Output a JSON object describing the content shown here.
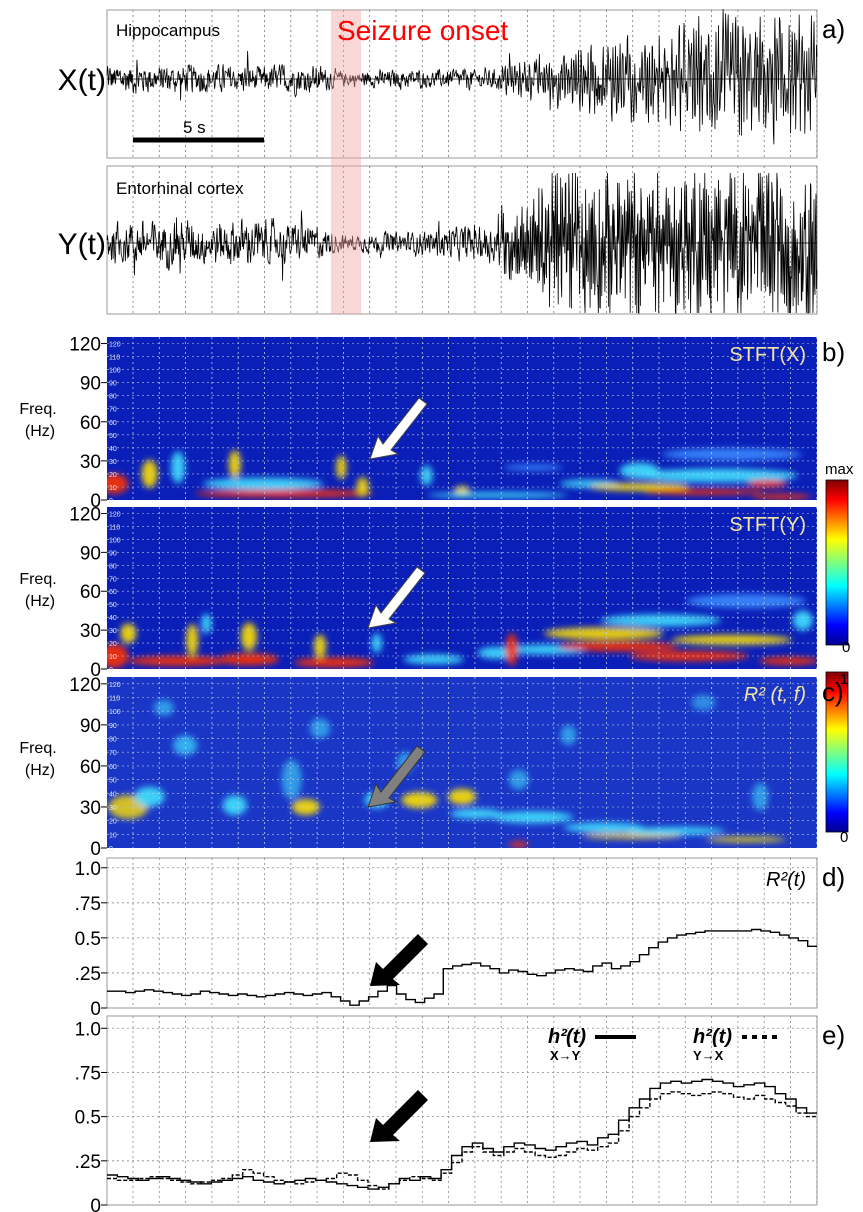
{
  "figure": {
    "panel_labels": [
      "a)",
      "b)",
      "c)",
      "d)",
      "e)"
    ],
    "seizure_onset_label": "Seizure onset",
    "seizure_band_color": "#f4a6a6",
    "scale_bar_label": "5 s"
  },
  "chart_data": [
    {
      "id": "a-x",
      "type": "line",
      "signal_label": "X(t)",
      "region_label": "Hippocampus",
      "series": [
        {
          "name": "",
          "trend": [
            0.18,
            0.18,
            0.17,
            0.19,
            0.18,
            0.17,
            0.16,
            0.2,
            0.18,
            0.1,
            0.1,
            0.12,
            0.12,
            0.13,
            0.14,
            0.15,
            0.18,
            0.22,
            0.28,
            0.34,
            0.38,
            0.42,
            0.46,
            0.5,
            0.55,
            0.55,
            0.55,
            0.55
          ]
        }
      ]
    },
    {
      "id": "a-y",
      "type": "line",
      "signal_label": "Y(t)",
      "region_label": "Entorhinal cortex",
      "series": [
        {
          "name": "",
          "trend": [
            0.25,
            0.28,
            0.3,
            0.3,
            0.27,
            0.3,
            0.28,
            0.25,
            0.22,
            0.1,
            0.12,
            0.14,
            0.16,
            0.2,
            0.22,
            0.3,
            0.36,
            0.65,
            0.72,
            0.68,
            0.66,
            0.66,
            0.68,
            0.7,
            0.72,
            0.72,
            0.74,
            0.75
          ]
        }
      ]
    },
    {
      "id": "b-x",
      "type": "heatmap",
      "title": "STFT(X)",
      "ylabel": "Freq.\n(Hz)",
      "y_ticks": [
        "0",
        "30",
        "60",
        "90",
        "120"
      ],
      "fine_ticks": [
        "0",
        "10",
        "20",
        "30",
        "40",
        "50",
        "60",
        "70",
        "80",
        "90",
        "100",
        "110",
        "120"
      ],
      "ylim": [
        0,
        125
      ],
      "colorbar": {
        "max_label": "max",
        "min_label": "0"
      }
    },
    {
      "id": "b-y",
      "type": "heatmap",
      "title": "STFT(Y)",
      "ylabel": "Freq.\n(Hz)",
      "y_ticks": [
        "0",
        "30",
        "60",
        "90",
        "120"
      ],
      "fine_ticks": [
        "0",
        "10",
        "20",
        "30",
        "40",
        "50",
        "60",
        "70",
        "80",
        "90",
        "100",
        "110",
        "120"
      ],
      "ylim": [
        0,
        125
      ]
    },
    {
      "id": "c",
      "type": "heatmap",
      "title": "R² (t, f)",
      "ylabel": "Freq.\n(Hz)",
      "y_ticks": [
        "0",
        "30",
        "60",
        "90",
        "120"
      ],
      "fine_ticks": [
        "0",
        "10",
        "20",
        "30",
        "40",
        "50",
        "60",
        "70",
        "80",
        "90",
        "100",
        "110",
        "120"
      ],
      "ylim": [
        0,
        125
      ],
      "colorbar": {
        "max_label": "1",
        "min_label": "0"
      }
    },
    {
      "id": "d",
      "type": "line",
      "title": "R²(t)",
      "y_ticks": [
        "0",
        ".25",
        "0.5",
        ".75",
        "1.0"
      ],
      "ylim": [
        0,
        1
      ],
      "series": [
        {
          "name": "",
          "style": "solid",
          "values": [
            0.12,
            0.12,
            0.11,
            0.12,
            0.13,
            0.12,
            0.11,
            0.1,
            0.09,
            0.1,
            0.12,
            0.11,
            0.1,
            0.09,
            0.1,
            0.09,
            0.08,
            0.09,
            0.1,
            0.11,
            0.1,
            0.09,
            0.1,
            0.11,
            0.08,
            0.05,
            0.02,
            0.05,
            0.08,
            0.12,
            0.16,
            0.1,
            0.06,
            0.04,
            0.07,
            0.1,
            0.28,
            0.3,
            0.31,
            0.32,
            0.3,
            0.28,
            0.25,
            0.27,
            0.26,
            0.24,
            0.23,
            0.25,
            0.27,
            0.28,
            0.27,
            0.26,
            0.3,
            0.32,
            0.28,
            0.3,
            0.33,
            0.38,
            0.43,
            0.47,
            0.5,
            0.52,
            0.53,
            0.54,
            0.55,
            0.55,
            0.55,
            0.55,
            0.55,
            0.56,
            0.55,
            0.54,
            0.52,
            0.5,
            0.48,
            0.44
          ]
        }
      ]
    },
    {
      "id": "e",
      "type": "line",
      "y_ticks": [
        "0",
        ".25",
        "0.5",
        ".75",
        "1.0"
      ],
      "ylim": [
        0,
        1
      ],
      "legend": [
        {
          "base": "h²",
          "sub": "X→Y",
          "suffix": "(t)",
          "style": "solid"
        },
        {
          "base": "h²",
          "sub": "Y→X",
          "suffix": "(t)",
          "style": "dotted"
        }
      ],
      "series": [
        {
          "name": "h²X→Y(t)",
          "style": "solid",
          "values": [
            0.17,
            0.16,
            0.15,
            0.14,
            0.15,
            0.16,
            0.15,
            0.14,
            0.13,
            0.12,
            0.13,
            0.14,
            0.15,
            0.16,
            0.14,
            0.13,
            0.12,
            0.13,
            0.14,
            0.15,
            0.14,
            0.13,
            0.12,
            0.11,
            0.1,
            0.09,
            0.1,
            0.12,
            0.15,
            0.14,
            0.16,
            0.15,
            0.2,
            0.28,
            0.33,
            0.35,
            0.32,
            0.3,
            0.33,
            0.35,
            0.34,
            0.32,
            0.31,
            0.33,
            0.35,
            0.36,
            0.34,
            0.38,
            0.4,
            0.48,
            0.55,
            0.6,
            0.66,
            0.69,
            0.7,
            0.69,
            0.7,
            0.71,
            0.7,
            0.69,
            0.67,
            0.68,
            0.69,
            0.67,
            0.63,
            0.6,
            0.55,
            0.52
          ]
        },
        {
          "name": "h²Y→X(t)",
          "style": "dotted",
          "values": [
            0.15,
            0.14,
            0.14,
            0.15,
            0.16,
            0.15,
            0.14,
            0.13,
            0.12,
            0.13,
            0.14,
            0.15,
            0.17,
            0.2,
            0.18,
            0.16,
            0.14,
            0.13,
            0.12,
            0.13,
            0.14,
            0.15,
            0.18,
            0.17,
            0.14,
            0.11,
            0.09,
            0.12,
            0.14,
            0.16,
            0.15,
            0.14,
            0.18,
            0.24,
            0.3,
            0.33,
            0.3,
            0.28,
            0.3,
            0.32,
            0.3,
            0.28,
            0.27,
            0.28,
            0.3,
            0.32,
            0.31,
            0.33,
            0.35,
            0.42,
            0.5,
            0.55,
            0.6,
            0.63,
            0.64,
            0.63,
            0.62,
            0.63,
            0.64,
            0.63,
            0.61,
            0.6,
            0.62,
            0.6,
            0.58,
            0.56,
            0.52,
            0.5
          ]
        }
      ]
    }
  ]
}
